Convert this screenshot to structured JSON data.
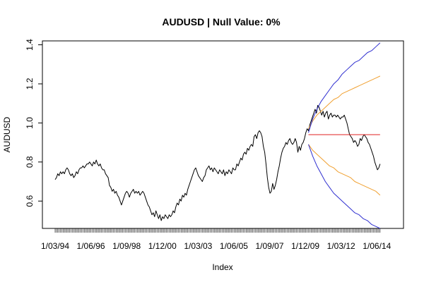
{
  "chart_data": {
    "type": "line",
    "title": "AUDUSD | Null Value: 0%",
    "xlabel": "Index",
    "ylabel": "AUDUSD",
    "x_tick_labels": [
      "1/03/94",
      "1/06/96",
      "1/09/98",
      "1/12/00",
      "1/03/03",
      "1/06/05",
      "1/09/07",
      "1/12/09",
      "1/03/12",
      "1/06/14"
    ],
    "y_ticks": [
      0.6,
      0.8,
      1.0,
      1.2,
      1.4
    ],
    "y_tick_labels": [
      "0.6",
      "0.8",
      "1.0",
      "1.2",
      "1.4"
    ],
    "xlim": [
      0,
      252
    ],
    "ylim": [
      0.46,
      1.42
    ],
    "grid": false,
    "colors": {
      "series": "#000000",
      "inner_band": "#f0a030",
      "outer_band": "#3030d0",
      "level": "#e02020"
    },
    "series": [
      {
        "values": [
          0.71,
          0.72,
          0.74,
          0.73,
          0.75,
          0.74,
          0.75,
          0.74,
          0.76,
          0.77,
          0.76,
          0.74,
          0.73,
          0.74,
          0.72,
          0.73,
          0.75,
          0.74,
          0.76,
          0.77,
          0.77,
          0.78,
          0.77,
          0.78,
          0.79,
          0.79,
          0.8,
          0.79,
          0.78,
          0.8,
          0.79,
          0.81,
          0.79,
          0.78,
          0.79,
          0.77,
          0.76,
          0.76,
          0.74,
          0.73,
          0.72,
          0.68,
          0.67,
          0.65,
          0.66,
          0.64,
          0.65,
          0.63,
          0.62,
          0.6,
          0.58,
          0.6,
          0.62,
          0.64,
          0.65,
          0.64,
          0.62,
          0.64,
          0.65,
          0.66,
          0.64,
          0.65,
          0.64,
          0.65,
          0.63,
          0.64,
          0.65,
          0.64,
          0.62,
          0.6,
          0.58,
          0.57,
          0.55,
          0.53,
          0.54,
          0.52,
          0.55,
          0.53,
          0.51,
          0.53,
          0.5,
          0.52,
          0.51,
          0.53,
          0.52,
          0.51,
          0.53,
          0.52,
          0.53,
          0.55,
          0.54,
          0.57,
          0.59,
          0.58,
          0.61,
          0.6,
          0.63,
          0.62,
          0.64,
          0.63,
          0.66,
          0.68,
          0.7,
          0.72,
          0.74,
          0.76,
          0.77,
          0.75,
          0.73,
          0.72,
          0.71,
          0.7,
          0.72,
          0.73,
          0.76,
          0.77,
          0.78,
          0.76,
          0.77,
          0.75,
          0.77,
          0.76,
          0.75,
          0.74,
          0.76,
          0.75,
          0.74,
          0.76,
          0.73,
          0.75,
          0.74,
          0.76,
          0.75,
          0.74,
          0.77,
          0.76,
          0.76,
          0.79,
          0.78,
          0.8,
          0.82,
          0.81,
          0.84,
          0.85,
          0.84,
          0.87,
          0.86,
          0.88,
          0.89,
          0.88,
          0.93,
          0.94,
          0.92,
          0.95,
          0.96,
          0.95,
          0.93,
          0.88,
          0.85,
          0.79,
          0.72,
          0.67,
          0.64,
          0.65,
          0.69,
          0.66,
          0.68,
          0.71,
          0.75,
          0.78,
          0.82,
          0.85,
          0.87,
          0.88,
          0.9,
          0.89,
          0.91,
          0.92,
          0.9,
          0.89,
          0.9,
          0.92,
          0.9,
          0.85,
          0.88,
          0.86,
          0.89,
          0.9,
          0.92,
          0.95,
          0.97,
          0.96,
          0.99,
          1.01,
          1.03,
          1.05,
          1.07,
          1.05,
          1.09,
          1.08,
          1.06,
          1.04,
          1.06,
          1.03,
          1.05,
          1.06,
          1.02,
          1.04,
          1.05,
          1.03,
          1.04,
          1.04,
          1.03,
          1.04,
          1.03,
          1.02,
          1.03,
          1.03,
          1.04,
          1.02,
          1.0,
          0.97,
          0.94,
          0.93,
          0.92,
          0.9,
          0.91,
          0.9,
          0.88,
          0.89,
          0.92,
          0.91,
          0.93,
          0.94,
          0.93,
          0.92,
          0.9,
          0.89,
          0.87,
          0.85,
          0.83,
          0.8,
          0.78,
          0.76,
          0.77,
          0.79
        ]
      },
      {
        "values": [
          0.97,
          1.01,
          1.04,
          1.06,
          1.08,
          1.1,
          1.12,
          1.13,
          1.15,
          1.16,
          1.17,
          1.18,
          1.19,
          1.2,
          1.21,
          1.22,
          1.23,
          1.24
        ]
      },
      {
        "values": [
          0.89,
          0.86,
          0.84,
          0.82,
          0.8,
          0.78,
          0.77,
          0.75,
          0.74,
          0.73,
          0.72,
          0.7,
          0.69,
          0.68,
          0.67,
          0.66,
          0.65,
          0.63
        ]
      },
      {
        "values": [
          0.95,
          1.02,
          1.07,
          1.11,
          1.14,
          1.17,
          1.2,
          1.22,
          1.25,
          1.27,
          1.29,
          1.31,
          1.32,
          1.34,
          1.36,
          1.37,
          1.39,
          1.41
        ]
      },
      {
        "values": [
          0.89,
          0.83,
          0.78,
          0.74,
          0.7,
          0.67,
          0.64,
          0.62,
          0.6,
          0.58,
          0.56,
          0.54,
          0.53,
          0.51,
          0.5,
          0.48,
          0.47,
          0.46
        ]
      },
      {
        "values": [
          0.94,
          0.94,
          0.94,
          0.94,
          0.94,
          0.94,
          0.94,
          0.94,
          0.94,
          0.94,
          0.94,
          0.94,
          0.94,
          0.94,
          0.94,
          0.94,
          0.94,
          0.94
        ]
      }
    ]
  }
}
